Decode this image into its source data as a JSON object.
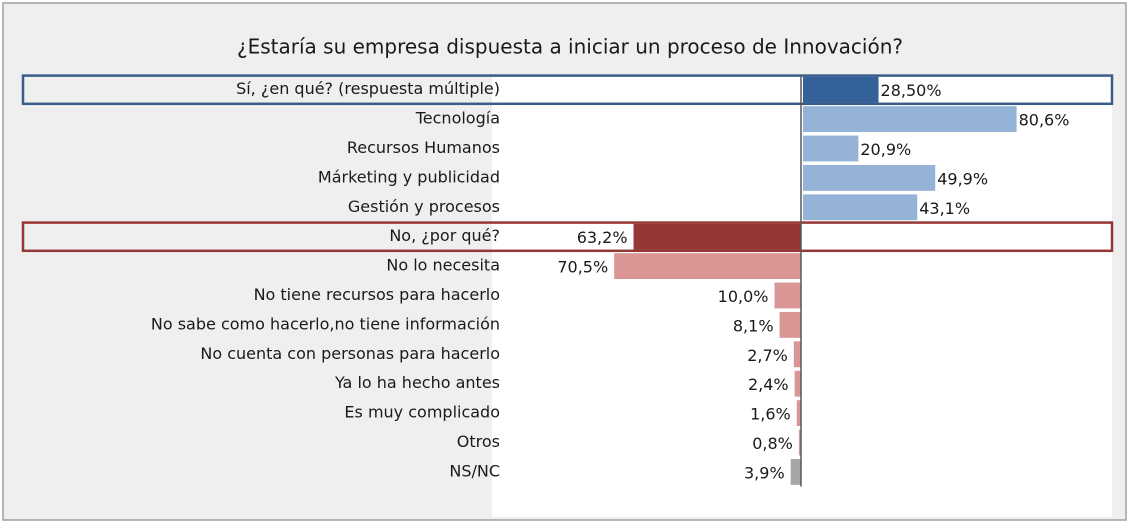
{
  "chart_data": {
    "type": "bar",
    "title": "¿Estaría su empresa dispuesta a iniciar un proceso de Innovación?",
    "categories": [
      "Sí, ¿en qué? (respuesta múltiple)",
      "Tecnología",
      "Recursos Humanos",
      "Márketing y publicidad",
      "Gestión y procesos",
      "No, ¿por  qué?",
      "No lo necesita",
      "No tiene recursos para hacerlo",
      "No sabe como hacerlo,no tiene información",
      "No cuenta con personas para hacerlo",
      "Ya lo ha hecho antes",
      "Es muy complicado",
      "Otros",
      "NS/NC"
    ],
    "values": [
      28.5,
      80.6,
      20.9,
      49.9,
      43.1,
      63.2,
      70.5,
      10.0,
      8.1,
      2.7,
      2.4,
      1.6,
      0.8,
      3.9
    ],
    "value_labels": [
      "28,50%",
      "80,6%",
      "20,9%",
      "49,9%",
      "43,1%",
      "63,2%",
      "70,5%",
      "10,0%",
      "8,1%",
      "2,7%",
      "2,4%",
      "1,6%",
      "0,8%",
      "3,9%"
    ],
    "sides": [
      "right",
      "right",
      "right",
      "right",
      "right",
      "left",
      "left",
      "left",
      "left",
      "left",
      "left",
      "left",
      "left",
      "left"
    ],
    "colors": [
      "#35619a",
      "#95b3d7",
      "#95b3d7",
      "#95b3d7",
      "#95b3d7",
      "#953735",
      "#d99694",
      "#d99694",
      "#d99694",
      "#d99694",
      "#d99694",
      "#d99694",
      "#d99694",
      "#a6a6a6"
    ],
    "highlighted": [
      true,
      false,
      false,
      false,
      false,
      true,
      false,
      false,
      false,
      false,
      false,
      false,
      false,
      false
    ],
    "highlight_colors": [
      "#385d8a",
      null,
      null,
      null,
      null,
      null,
      null,
      null,
      null,
      null,
      null,
      null,
      null,
      null
    ]
  }
}
